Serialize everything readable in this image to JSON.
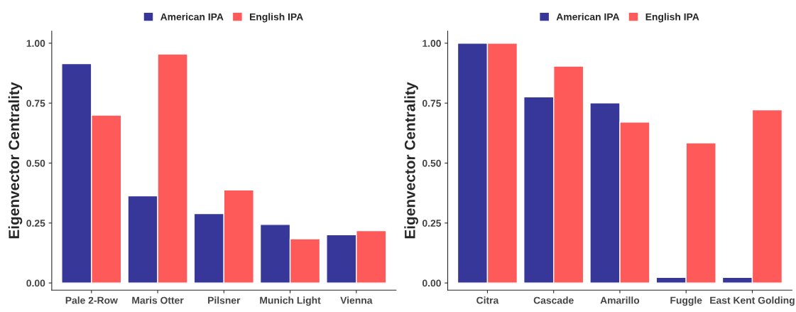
{
  "chart_data": [
    {
      "type": "bar",
      "ylabel": "Eigenvector Centrality",
      "categories": [
        "Pale 2-Row",
        "Maris Otter",
        "Pilsner",
        "Munich Light",
        "Vienna"
      ],
      "series": [
        {
          "name": "American IPA",
          "color": "#373699",
          "values": [
            0.915,
            0.363,
            0.289,
            0.244,
            0.201
          ]
        },
        {
          "name": "English IPA",
          "color": "#ff5a5a",
          "values": [
            0.7,
            0.955,
            0.388,
            0.184,
            0.218
          ]
        }
      ],
      "ylim": [
        -0.03,
        1.05
      ],
      "yticks": [
        {
          "value": 0,
          "label": "0.00"
        },
        {
          "value": 0.25,
          "label": "0.25"
        },
        {
          "value": 0.5,
          "label": "0.50"
        },
        {
          "value": 0.75,
          "label": "0.75"
        },
        {
          "value": 1,
          "label": "1.00"
        }
      ],
      "legend": "top",
      "grid": false
    },
    {
      "type": "bar",
      "ylabel": "Eigenvector Centrality",
      "categories": [
        "Citra",
        "Cascade",
        "Amarillo",
        "Fuggle",
        "East Kent Golding"
      ],
      "series": [
        {
          "name": "American IPA",
          "color": "#373699",
          "values": [
            1.0,
            0.776,
            0.751,
            0.023,
            0.023
          ]
        },
        {
          "name": "English IPA",
          "color": "#ff5a5a",
          "values": [
            1.0,
            0.904,
            0.671,
            0.584,
            0.722
          ]
        }
      ],
      "ylim": [
        -0.03,
        1.05
      ],
      "yticks": [
        {
          "value": 0,
          "label": "0.00"
        },
        {
          "value": 0.25,
          "label": "0.25"
        },
        {
          "value": 0.5,
          "label": "0.50"
        },
        {
          "value": 0.75,
          "label": "0.75"
        },
        {
          "value": 1,
          "label": "1.00"
        }
      ],
      "legend": "top",
      "grid": false
    }
  ]
}
